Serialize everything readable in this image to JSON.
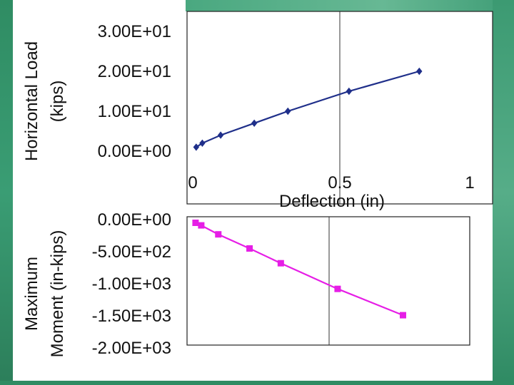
{
  "chart_data": [
    {
      "type": "scatter",
      "title": "",
      "xlabel": "Deflection (in)",
      "ylabel_lines": [
        "Horizontal Load",
        "(kips)"
      ],
      "x_ticks": [
        "0",
        "0.5",
        "1"
      ],
      "y_ticks": [
        "0.00E+00",
        "1.00E+01",
        "2.00E+01",
        "3.00E+01"
      ],
      "xlim": [
        0,
        1
      ],
      "ylim": [
        0,
        30
      ],
      "grid": "vertical",
      "legend": "none",
      "series": [
        {
          "color": "#1f2f8a",
          "marker": "diamond",
          "x": [
            0.03,
            0.05,
            0.11,
            0.22,
            0.33,
            0.53,
            0.76
          ],
          "y": [
            1,
            2,
            4,
            7,
            10,
            15,
            20
          ]
        }
      ]
    },
    {
      "type": "scatter",
      "title": "",
      "xlabel": "",
      "ylabel_lines": [
        "Maximum",
        "Moment (in-kips)"
      ],
      "y_ticks": [
        "0.00E+00",
        "-5.00E+02",
        "-1.00E+03",
        "-1.50E+03",
        "-2.00E+03"
      ],
      "xlim": [
        0,
        1
      ],
      "ylim": [
        -2000,
        0
      ],
      "grid": "vertical",
      "legend": "none",
      "series": [
        {
          "color": "#e61ee6",
          "marker": "square",
          "x": [
            0.03,
            0.05,
            0.11,
            0.22,
            0.33,
            0.53,
            0.76
          ],
          "y": [
            -50,
            -90,
            -230,
            -450,
            -680,
            -1080,
            -1490
          ]
        }
      ]
    }
  ]
}
